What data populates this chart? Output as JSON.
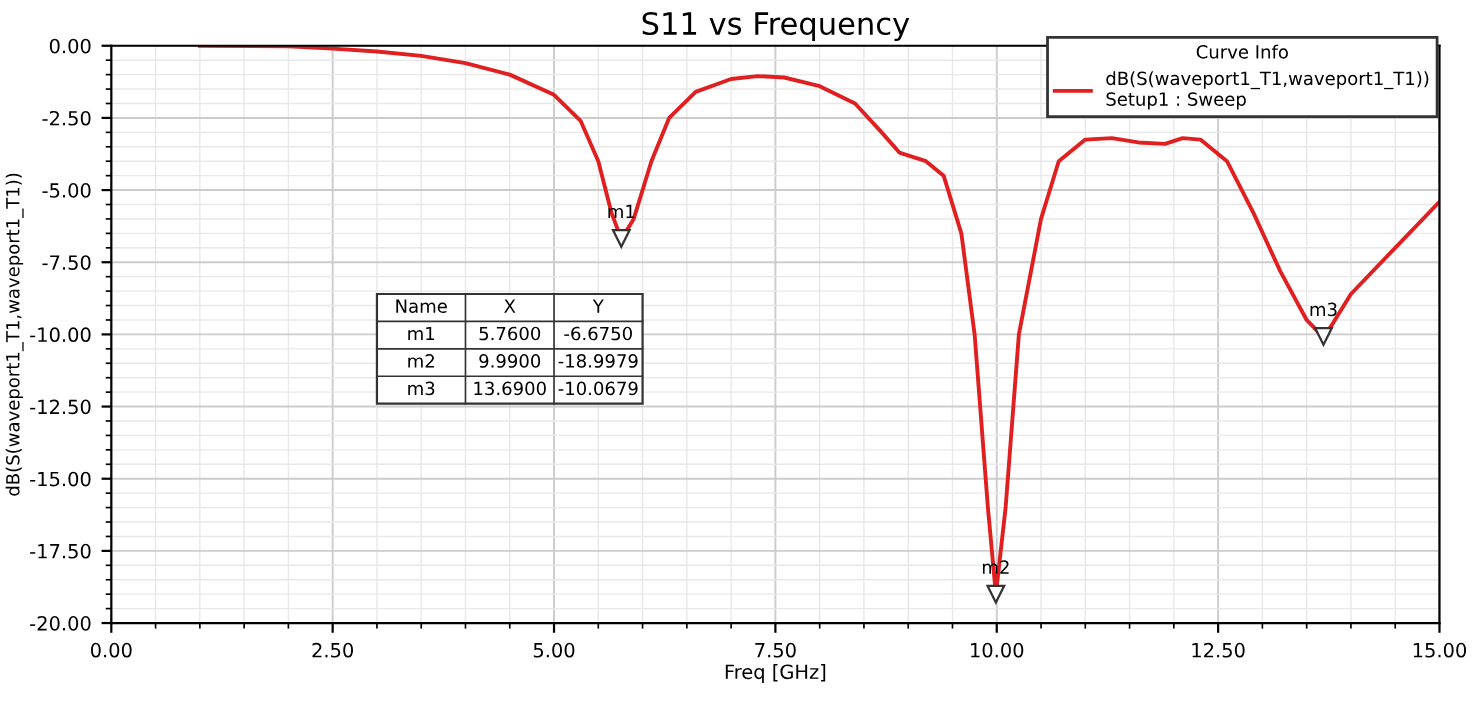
{
  "chart_data": {
    "type": "line",
    "title": "S11 vs Frequency",
    "xlabel": "Freq [GHz]",
    "ylabel": "dB(S(waveport1_T1,waveport1_T1))",
    "legend_title": "Curve Info",
    "series": [
      {
        "name": "dB(S(waveport1_T1,waveport1_T1))\nSetup1 : Sweep",
        "color": "#e02020",
        "x": [
          1,
          2,
          2.5,
          3,
          3.5,
          4,
          4.5,
          5,
          5.3,
          5.5,
          5.65,
          5.76,
          5.9,
          6.1,
          6.3,
          6.6,
          7,
          7.3,
          7.6,
          8,
          8.4,
          8.7,
          8.9,
          9.2,
          9.4,
          9.6,
          9.75,
          9.9,
          9.99,
          10.1,
          10.25,
          10.5,
          10.7,
          11,
          11.3,
          11.6,
          11.9,
          12.1,
          12.3,
          12.6,
          12.9,
          13.2,
          13.5,
          13.69,
          13.8,
          14,
          14.5,
          15
        ],
        "values": [
          0,
          -0.02,
          -0.1,
          -0.2,
          -0.35,
          -0.6,
          -1.0,
          -1.7,
          -2.6,
          -4.0,
          -5.8,
          -6.7,
          -6.0,
          -4.0,
          -2.5,
          -1.6,
          -1.15,
          -1.05,
          -1.1,
          -1.4,
          -2.0,
          -3.0,
          -3.7,
          -4.0,
          -4.5,
          -6.5,
          -10,
          -16,
          -19.0,
          -16,
          -10,
          -6,
          -4.0,
          -3.25,
          -3.2,
          -3.35,
          -3.4,
          -3.2,
          -3.25,
          -4.0,
          -5.8,
          -7.8,
          -9.5,
          -10.1,
          -9.6,
          -8.6,
          -7.0,
          -5.4
        ]
      }
    ],
    "xlim": [
      0,
      15
    ],
    "ylim": [
      -20,
      0
    ],
    "xticks": [
      {
        "value": 0,
        "label": "0.00"
      },
      {
        "value": 2.5,
        "label": "2.50"
      },
      {
        "value": 5,
        "label": "5.00"
      },
      {
        "value": 7.5,
        "label": "7.50"
      },
      {
        "value": 10,
        "label": "10.00"
      },
      {
        "value": 12.5,
        "label": "12.50"
      },
      {
        "value": 15,
        "label": "15.00"
      }
    ],
    "yticks": [
      {
        "value": -20,
        "label": "-20.00"
      },
      {
        "value": -17.5,
        "label": "-17.50"
      },
      {
        "value": -15,
        "label": "-15.00"
      },
      {
        "value": -12.5,
        "label": "-12.50"
      },
      {
        "value": -10,
        "label": "-10.00"
      },
      {
        "value": -7.5,
        "label": "-7.50"
      },
      {
        "value": -5,
        "label": "-5.00"
      },
      {
        "value": -2.5,
        "label": "-2.50"
      },
      {
        "value": 0,
        "label": "0.00"
      }
    ],
    "annotations": [
      {
        "text": "m1",
        "x": 5.76,
        "y": -6.675
      },
      {
        "text": "m2",
        "x": 9.99,
        "y": -18.9979
      },
      {
        "text": "m3",
        "x": 13.69,
        "y": -10.0679
      },
      "Name",
      "X",
      "Y",
      "m1",
      "5.7600",
      "-6.6750",
      "m2",
      "9.9900",
      "-18.9979",
      "m3",
      "13.6900",
      "-10.0679"
    ],
    "grid": true,
    "legend": "top right",
    "marker": "none",
    "line_style": "solid"
  }
}
